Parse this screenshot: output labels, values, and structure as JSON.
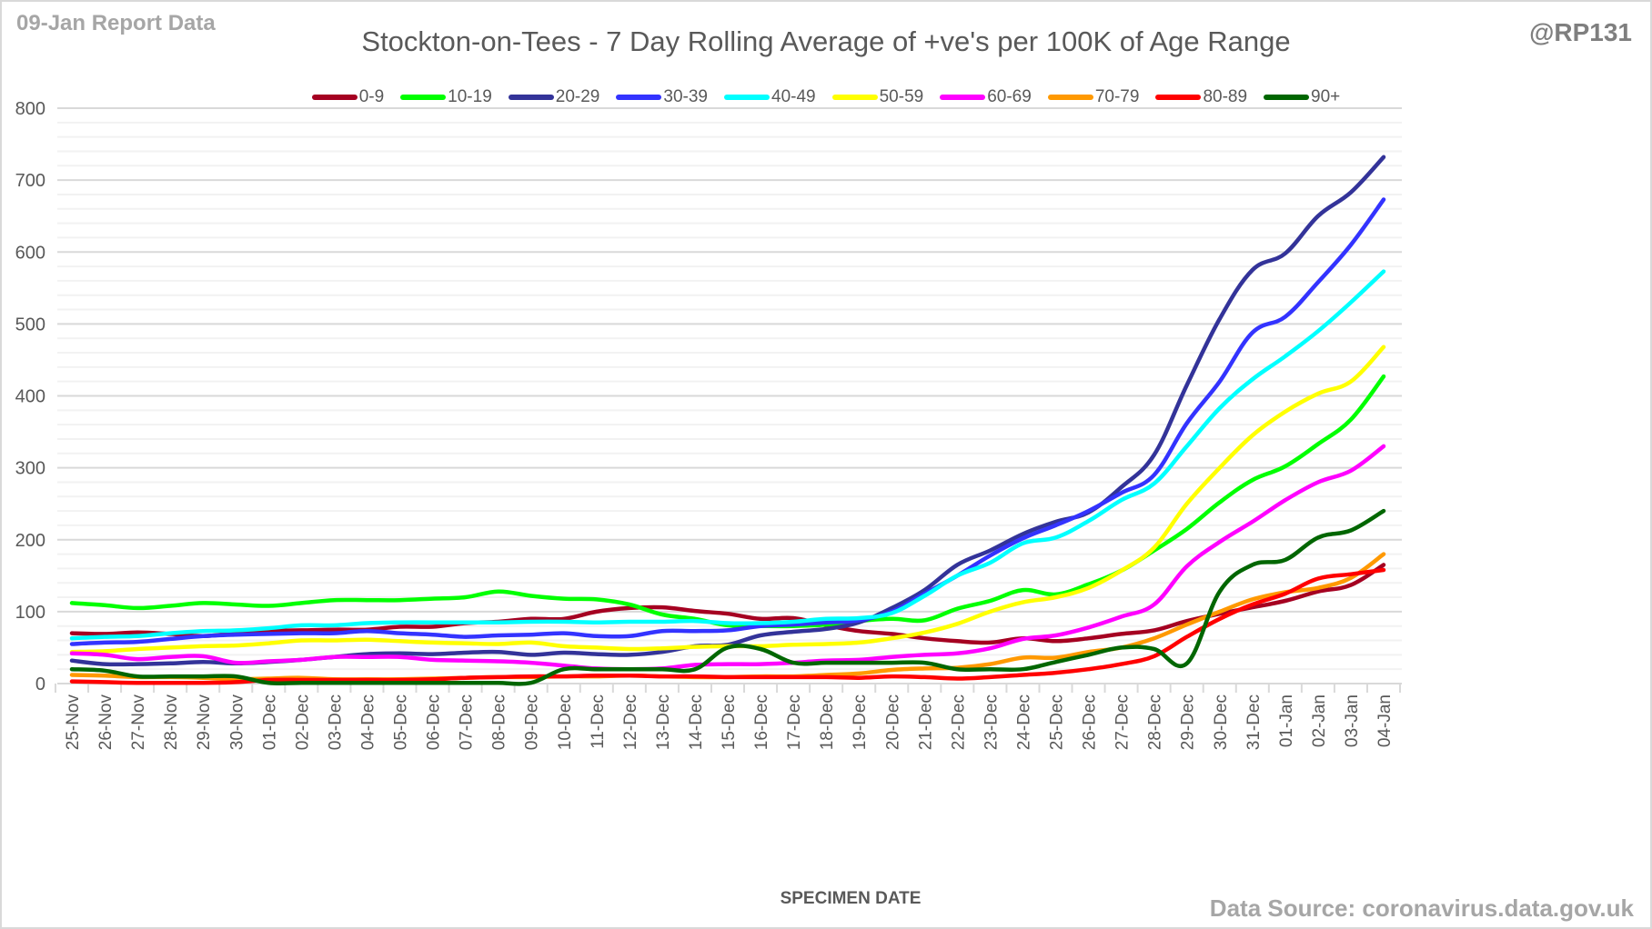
{
  "header": {
    "report_label": "09-Jan Report Data",
    "handle": "@RP131",
    "source": "Data Source: coronavirus.data.gov.uk"
  },
  "chart_data": {
    "type": "line",
    "title": "Stockton-on-Tees - 7 Day Rolling Average of +ve's per 100K of Age Range",
    "xlabel": "SPECIMEN DATE",
    "ylabel": "",
    "ylim": [
      0,
      800
    ],
    "yticks": [
      0,
      100,
      200,
      300,
      400,
      500,
      600,
      700,
      800
    ],
    "minor_gridlines_every": 20,
    "grid": true,
    "legend_position": "top",
    "categories": [
      "25-Nov",
      "26-Nov",
      "27-Nov",
      "28-Nov",
      "29-Nov",
      "30-Nov",
      "01-Dec",
      "02-Dec",
      "03-Dec",
      "04-Dec",
      "05-Dec",
      "06-Dec",
      "07-Dec",
      "08-Dec",
      "09-Dec",
      "10-Dec",
      "11-Dec",
      "12-Dec",
      "13-Dec",
      "14-Dec",
      "15-Dec",
      "16-Dec",
      "17-Dec",
      "18-Dec",
      "19-Dec",
      "20-Dec",
      "21-Dec",
      "22-Dec",
      "23-Dec",
      "24-Dec",
      "25-Dec",
      "26-Dec",
      "27-Dec",
      "28-Dec",
      "29-Dec",
      "30-Dec",
      "31-Dec",
      "01-Jan",
      "02-Jan",
      "03-Jan",
      "04-Jan"
    ],
    "series": [
      {
        "name": "0-9",
        "color": "#a50021",
        "values": [
          70,
          69,
          71,
          69,
          66,
          70,
          73,
          74,
          75,
          75,
          79,
          79,
          84,
          86,
          90,
          90,
          100,
          105,
          106,
          101,
          97,
          90,
          91,
          81,
          73,
          69,
          63,
          59,
          57,
          63,
          59,
          63,
          69,
          74,
          87,
          97,
          106,
          115,
          128,
          137,
          165
        ]
      },
      {
        "name": "10-19",
        "color": "#00ff00",
        "values": [
          112,
          109,
          105,
          108,
          112,
          110,
          108,
          112,
          116,
          116,
          116,
          118,
          120,
          128,
          122,
          118,
          117,
          110,
          96,
          90,
          81,
          80,
          80,
          82,
          87,
          90,
          88,
          104,
          115,
          130,
          124,
          138,
          157,
          185,
          215,
          252,
          283,
          302,
          333,
          367,
          427
        ]
      },
      {
        "name": "20-29",
        "color": "#333399",
        "values": [
          32,
          27,
          27,
          28,
          30,
          28,
          30,
          33,
          37,
          41,
          42,
          41,
          43,
          44,
          40,
          43,
          41,
          40,
          44,
          52,
          54,
          67,
          72,
          76,
          85,
          105,
          130,
          165,
          185,
          208,
          225,
          238,
          273,
          318,
          415,
          507,
          575,
          598,
          650,
          683,
          732
        ]
      },
      {
        "name": "30-39",
        "color": "#3333ff",
        "values": [
          55,
          57,
          58,
          62,
          66,
          68,
          69,
          70,
          70,
          73,
          70,
          68,
          65,
          67,
          68,
          70,
          66,
          66,
          73,
          73,
          74,
          80,
          82,
          85,
          88,
          100,
          125,
          150,
          178,
          202,
          220,
          240,
          265,
          290,
          362,
          420,
          488,
          510,
          558,
          610,
          673
        ]
      },
      {
        "name": "40-49",
        "color": "#00ffff",
        "values": [
          63,
          65,
          66,
          70,
          73,
          74,
          77,
          81,
          81,
          84,
          85,
          85,
          85,
          85,
          86,
          86,
          85,
          86,
          86,
          87,
          84,
          84,
          86,
          90,
          91,
          98,
          122,
          150,
          168,
          195,
          203,
          226,
          255,
          278,
          330,
          383,
          423,
          455,
          490,
          530,
          573
        ]
      },
      {
        "name": "50-59",
        "color": "#ffff00",
        "values": [
          44,
          45,
          48,
          50,
          52,
          53,
          56,
          60,
          60,
          61,
          59,
          57,
          56,
          55,
          57,
          52,
          50,
          48,
          49,
          51,
          52,
          52,
          54,
          55,
          57,
          63,
          71,
          83,
          100,
          113,
          120,
          133,
          157,
          189,
          250,
          300,
          345,
          378,
          403,
          420,
          468
        ]
      },
      {
        "name": "60-69",
        "color": "#ff00ff",
        "values": [
          42,
          40,
          34,
          37,
          38,
          29,
          31,
          33,
          37,
          37,
          37,
          33,
          32,
          31,
          29,
          25,
          21,
          20,
          21,
          26,
          27,
          27,
          29,
          32,
          33,
          37,
          40,
          42,
          49,
          62,
          67,
          78,
          93,
          110,
          163,
          197,
          225,
          255,
          280,
          296,
          330
        ]
      },
      {
        "name": "70-79",
        "color": "#ff9900",
        "values": [
          12,
          11,
          9,
          9,
          8,
          6,
          7,
          8,
          6,
          6,
          6,
          7,
          8,
          9,
          9,
          10,
          10,
          11,
          10,
          9,
          9,
          10,
          10,
          12,
          14,
          19,
          21,
          22,
          27,
          36,
          36,
          44,
          50,
          63,
          82,
          100,
          117,
          127,
          133,
          147,
          180
        ]
      },
      {
        "name": "80-89",
        "color": "#ff0000",
        "values": [
          3,
          2,
          1,
          1,
          1,
          2,
          5,
          5,
          5,
          5,
          5,
          6,
          8,
          9,
          10,
          10,
          11,
          11,
          10,
          10,
          9,
          9,
          9,
          9,
          8,
          10,
          9,
          7,
          9,
          12,
          15,
          20,
          27,
          38,
          65,
          90,
          110,
          125,
          146,
          152,
          158
        ]
      },
      {
        "name": "90+",
        "color": "#006600",
        "values": [
          20,
          18,
          10,
          10,
          10,
          10,
          1,
          1,
          1,
          1,
          1,
          1,
          1,
          1,
          1,
          20,
          20,
          20,
          20,
          20,
          50,
          48,
          29,
          29,
          29,
          29,
          29,
          20,
          20,
          20,
          30,
          40,
          50,
          48,
          28,
          128,
          165,
          172,
          203,
          213,
          240
        ]
      }
    ]
  }
}
